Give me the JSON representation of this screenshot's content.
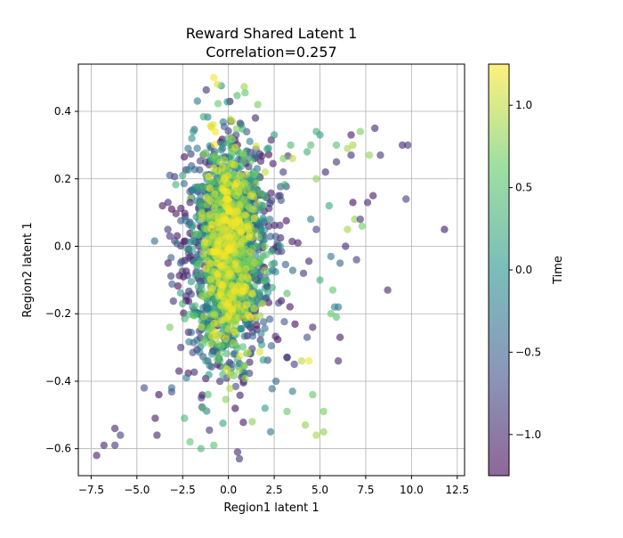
{
  "chart_data": {
    "type": "scatter",
    "title_line1": "Reward Shared Latent 1",
    "title_line2": "Correlation=0.257",
    "xlabel": "Region1 latent 1",
    "ylabel": "Region2 latent 1",
    "xlim": [
      -8.2,
      12.9
    ],
    "ylim": [
      -0.68,
      0.54
    ],
    "xticks": [
      -7.5,
      -5.0,
      -2.5,
      0.0,
      2.5,
      5.0,
      7.5,
      10.0,
      12.5
    ],
    "xtick_labels": [
      "−7.5",
      "−5.0",
      "−2.5",
      "0.0",
      "2.5",
      "5.0",
      "7.5",
      "10.0",
      "12.5"
    ],
    "yticks": [
      -0.6,
      -0.4,
      -0.2,
      0.0,
      0.2,
      0.4
    ],
    "ytick_labels": [
      "−0.6",
      "−0.4",
      "−0.2",
      "0.0",
      "0.2",
      "0.4"
    ],
    "grid": true,
    "colorbar": {
      "label": "Time",
      "range": [
        -1.25,
        1.25
      ],
      "ticks": [
        -1.0,
        -0.5,
        0.0,
        0.5,
        1.0
      ],
      "tick_labels": [
        "−1.0",
        "−0.5",
        "0.0",
        "0.5",
        "1.0"
      ],
      "colormap": "viridis",
      "alpha": 0.6
    },
    "colormap_stops": [
      "#440154",
      "#3b528b",
      "#21918c",
      "#5ec962",
      "#fde725"
    ],
    "points": [
      {
        "x": -7.2,
        "y": -0.62,
        "t": -1.1
      },
      {
        "x": -6.8,
        "y": -0.59,
        "t": -1.0
      },
      {
        "x": -6.2,
        "y": -0.59,
        "t": -0.9
      },
      {
        "x": -6.2,
        "y": -0.54,
        "t": -1.0
      },
      {
        "x": -5.9,
        "y": -0.56,
        "t": -0.8
      },
      {
        "x": -4.6,
        "y": -0.42,
        "t": -0.7
      },
      {
        "x": -4.0,
        "y": -0.51,
        "t": -1.1
      },
      {
        "x": -3.9,
        "y": -0.56,
        "t": -1.0
      },
      {
        "x": -3.8,
        "y": -0.44,
        "t": -1.2
      },
      {
        "x": -3.1,
        "y": -0.42,
        "t": -0.4
      },
      {
        "x": -2.7,
        "y": -0.37,
        "t": -1.1
      },
      {
        "x": -2.4,
        "y": -0.51,
        "t": 0.4
      },
      {
        "x": -2.1,
        "y": -0.58,
        "t": 0.6
      },
      {
        "x": -1.5,
        "y": -0.6,
        "t": 0.4
      },
      {
        "x": -0.8,
        "y": -0.59,
        "t": 0.5
      },
      {
        "x": -3.2,
        "y": -0.24,
        "t": 0.7
      },
      {
        "x": -3.6,
        "y": 0.12,
        "t": -1.1
      },
      {
        "x": -3.3,
        "y": 0.13,
        "t": -1.0
      },
      {
        "x": -3.1,
        "y": 0.11,
        "t": -1.2
      },
      {
        "x": 0.6,
        "y": -0.63,
        "t": -0.9
      },
      {
        "x": 0.5,
        "y": -0.61,
        "t": -1.0
      },
      {
        "x": 2.3,
        "y": -0.55,
        "t": -0.3
      },
      {
        "x": 4.2,
        "y": -0.53,
        "t": 0.8
      },
      {
        "x": 4.8,
        "y": -0.56,
        "t": 0.9
      },
      {
        "x": 5.2,
        "y": -0.55,
        "t": 0.8
      },
      {
        "x": 3.2,
        "y": -0.49,
        "t": 0.6
      },
      {
        "x": 5.2,
        "y": -0.49,
        "t": 0.7
      },
      {
        "x": 4.6,
        "y": -0.44,
        "t": 0.6
      },
      {
        "x": 3.5,
        "y": -0.43,
        "t": -0.2
      },
      {
        "x": 6.0,
        "y": -0.34,
        "t": -1.0
      },
      {
        "x": 6.1,
        "y": -0.27,
        "t": -1.1
      },
      {
        "x": 6.0,
        "y": -0.18,
        "t": -0.3
      },
      {
        "x": 5.8,
        "y": -0.18,
        "t": -0.1
      },
      {
        "x": 5.9,
        "y": -0.21,
        "t": 0.5
      },
      {
        "x": 5.6,
        "y": -0.2,
        "t": 0.6
      },
      {
        "x": 8.7,
        "y": -0.13,
        "t": -1.0
      },
      {
        "x": 11.8,
        "y": 0.05,
        "t": -1.1
      },
      {
        "x": 9.7,
        "y": 0.14,
        "t": -0.8
      },
      {
        "x": 9.5,
        "y": 0.3,
        "t": -1.0
      },
      {
        "x": 9.8,
        "y": 0.3,
        "t": -0.9
      },
      {
        "x": 8.0,
        "y": 0.35,
        "t": -1.0
      },
      {
        "x": 8.3,
        "y": 0.27,
        "t": -0.9
      },
      {
        "x": 7.2,
        "y": 0.34,
        "t": 0.7
      },
      {
        "x": 6.7,
        "y": 0.33,
        "t": -1.1
      },
      {
        "x": 6.8,
        "y": 0.3,
        "t": 0.9
      },
      {
        "x": 7.7,
        "y": 0.27,
        "t": 0.8
      },
      {
        "x": 6.5,
        "y": 0.29,
        "t": 0.9
      },
      {
        "x": 6.7,
        "y": 0.27,
        "t": -0.9
      },
      {
        "x": 5.0,
        "y": 0.33,
        "t": 0.1
      },
      {
        "x": 4.8,
        "y": 0.34,
        "t": 0.3
      },
      {
        "x": 5.3,
        "y": 0.22,
        "t": -1.0
      },
      {
        "x": 7.9,
        "y": 0.15,
        "t": -1.1
      },
      {
        "x": 7.6,
        "y": 0.13,
        "t": -1.0
      },
      {
        "x": 6.8,
        "y": 0.13,
        "t": -1.2
      },
      {
        "x": 6.9,
        "y": 0.08,
        "t": 0.8
      },
      {
        "x": 7.3,
        "y": 0.06,
        "t": 0.7
      },
      {
        "x": 6.5,
        "y": 0.05,
        "t": 0.9
      },
      {
        "x": 7.2,
        "y": 0.08,
        "t": -0.9
      },
      {
        "x": 6.4,
        "y": 0.0,
        "t": -1.0
      },
      {
        "x": 7.0,
        "y": -0.04,
        "t": -0.8
      },
      {
        "x": 5.5,
        "y": 0.12,
        "t": 0.2
      },
      {
        "x": 4.8,
        "y": 0.2,
        "t": 0.8
      },
      {
        "x": 5.9,
        "y": 0.25,
        "t": -0.9
      },
      {
        "x": 5.9,
        "y": 0.3,
        "t": 0.5
      },
      {
        "x": 3.4,
        "y": 0.3,
        "t": 0.4
      },
      {
        "x": 3.5,
        "y": 0.26,
        "t": 1.0
      },
      {
        "x": 3.0,
        "y": 0.26,
        "t": 0.7
      },
      {
        "x": 4.5,
        "y": 0.3,
        "t": 0.5
      },
      {
        "x": 4.3,
        "y": 0.28,
        "t": 0.3
      },
      {
        "x": 2.5,
        "y": 0.33,
        "t": 0.1
      },
      {
        "x": 2.0,
        "y": 0.22,
        "t": 1.0
      },
      {
        "x": 1.6,
        "y": 0.42,
        "t": 0.7
      },
      {
        "x": -0.8,
        "y": 0.5,
        "t": 1.2
      },
      {
        "x": -0.6,
        "y": 0.48,
        "t": 1.1
      },
      {
        "x": -2.0,
        "y": 0.32,
        "t": 0.0
      },
      {
        "x": -2.2,
        "y": 0.29,
        "t": -0.3
      },
      {
        "x": -2.5,
        "y": 0.21,
        "t": 0.2
      },
      {
        "x": -2.1,
        "y": 0.13,
        "t": -1.0
      },
      {
        "x": 4.4,
        "y": -0.34,
        "t": 1.2
      },
      {
        "x": 4.0,
        "y": -0.34,
        "t": 1.0
      },
      {
        "x": 3.6,
        "y": -0.35,
        "t": -0.8
      },
      {
        "x": 3.2,
        "y": -0.33,
        "t": -1.0
      },
      {
        "x": 4.3,
        "y": -0.27,
        "t": -0.7
      },
      {
        "x": 4.6,
        "y": -0.24,
        "t": -1.0
      },
      {
        "x": 5.7,
        "y": -0.13,
        "t": 0.6
      },
      {
        "x": 5.0,
        "y": -0.1,
        "t": 0.3
      },
      {
        "x": 6.1,
        "y": -0.05,
        "t": -0.5
      },
      {
        "x": 5.6,
        "y": -0.03,
        "t": -0.3
      },
      {
        "x": 4.5,
        "y": 0.08,
        "t": -0.2
      },
      {
        "x": 4.8,
        "y": 0.05,
        "t": -0.8
      },
      {
        "x": 3.8,
        "y": 0.01,
        "t": -1.1
      },
      {
        "x": 4.1,
        "y": -0.08,
        "t": -0.9
      },
      {
        "x": 3.2,
        "y": -0.14,
        "t": 0.5
      },
      {
        "x": 2.6,
        "y": -0.4,
        "t": -0.4
      },
      {
        "x": 2.0,
        "y": -0.48,
        "t": 0.1
      },
      {
        "x": 1.3,
        "y": -0.52,
        "t": 0.8
      },
      {
        "x": -1.4,
        "y": -0.48,
        "t": 0.5
      },
      {
        "x": -2.3,
        "y": -0.39,
        "t": -0.2
      },
      {
        "x": -2.6,
        "y": -0.3,
        "t": -0.9
      },
      {
        "x": -3.3,
        "y": -0.05,
        "t": -1.1
      },
      {
        "x": -3.2,
        "y": 0.03,
        "t": -0.9
      }
    ],
    "cluster": {
      "x_mean": 0.0,
      "x_spread": 0.85,
      "y_mean": -0.01,
      "y_spread": 0.17,
      "count": 2200
    }
  }
}
